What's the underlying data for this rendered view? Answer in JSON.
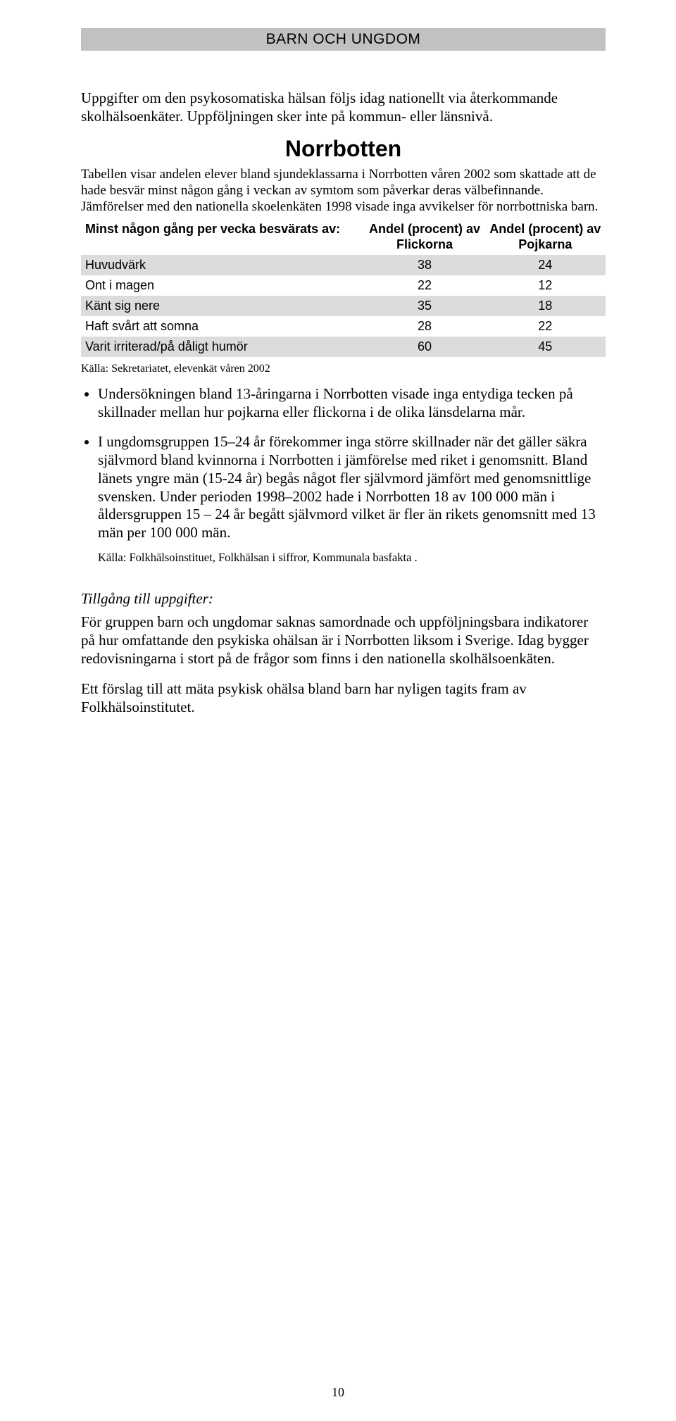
{
  "header": {
    "banner": "BARN OCH UNGDOM"
  },
  "intro": "Uppgifter om den psykosomatiska hälsan följs idag nationellt via återkommande skolhälsoenkäter. Uppföljningen sker inte på kommun- eller länsnivå.",
  "section_title": "Norrbotten",
  "table_caption": "Tabellen visar andelen elever bland sjundeklassarna i Norrbotten våren 2002 som skattade att de hade besvär minst någon gång i veckan av symtom som påverkar deras välbefinnande. Jämförelser med den nationella skoelenkäten 1998 visade inga avvikelser för norrbottniska barn.",
  "table": {
    "columns": [
      "Minst någon gång per vecka besvärats av:",
      "Andel (procent) av Flickorna",
      "Andel (procent) av Pojkarna"
    ],
    "rows": [
      {
        "label": "Huvudvärk",
        "girls": "38",
        "boys": "24",
        "shaded": true
      },
      {
        "label": "Ont i magen",
        "girls": "22",
        "boys": "12",
        "shaded": false
      },
      {
        "label": "Känt sig nere",
        "girls": "35",
        "boys": "18",
        "shaded": true
      },
      {
        "label": "Haft svårt att somna",
        "girls": "28",
        "boys": "22",
        "shaded": false
      },
      {
        "label": "Varit irriterad/på dåligt humör",
        "girls": "60",
        "boys": "45",
        "shaded": true
      }
    ]
  },
  "source1": "Källa: Sekretariatet, elevenkät våren 2002",
  "bullets": [
    "Undersökningen bland 13-åringarna i Norrbotten visade inga entydiga tecken på skillnader mellan hur pojkarna eller flickorna i de olika länsdelarna mår.",
    "I ungdomsgruppen 15–24 år förekommer inga större skillnader när det gäller säkra självmord bland kvinnorna i Norrbotten i jämförelse med riket i genomsnitt. Bland länets yngre män (15-24 år) begås något fler självmord jämfört med genomsnittlige svensken. Under perioden 1998–2002 hade i Norrbotten 18 av 100 000 män i åldersgruppen 15 – 24 år begått självmord vilket är fler än rikets genomsnitt med 13 män per 100 000 män."
  ],
  "source2": "Källa: Folkhälsoinstituet, Folkhälsan i siffror, Kommunala basfakta .",
  "subsection_title": "Tillgång till uppgifter:",
  "para1": "För gruppen barn och ungdomar saknas samordnade och uppföljningsbara indikatorer på hur omfattande den psykiska ohälsan är i Norrbotten liksom i Sverige. Idag bygger redovisningarna i stort på de frågor som finns i den nationella skolhälsoenkäten.",
  "para2": "Ett förslag till att mäta psykisk ohälsa bland barn har nyligen tagits fram av Folkhälsoinstitutet.",
  "page_number": "10"
}
